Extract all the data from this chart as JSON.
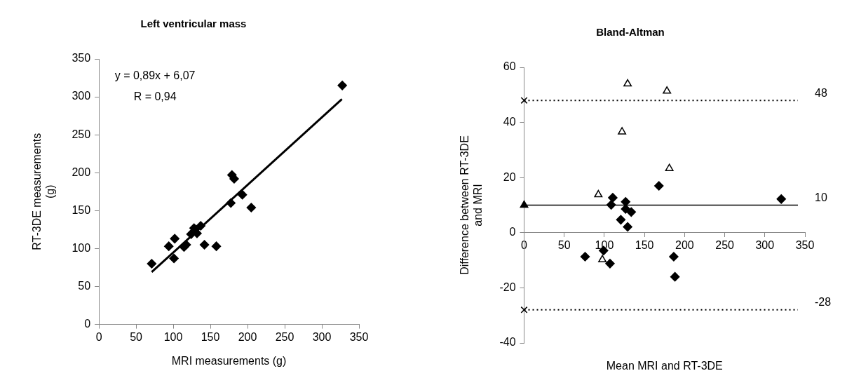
{
  "chart_data": [
    {
      "type": "scatter",
      "title": "Left ventricular mass",
      "xlabel": "MRI measurements (g)",
      "ylabel": "RT-3DE measurements (g)",
      "xlim": [
        0,
        350
      ],
      "xticks": [
        0,
        50,
        100,
        150,
        200,
        250,
        300,
        350
      ],
      "ylim": [
        0,
        350
      ],
      "yticks": [
        0,
        50,
        100,
        150,
        200,
        250,
        300,
        350
      ],
      "grid": false,
      "legend": false,
      "annotations": [
        "y = 0,89x + 6,07",
        "R = 0,94"
      ],
      "series": [
        {
          "color": "#000000",
          "marker": "diamond",
          "x": [
            71,
            94,
            102,
            101,
            114.5,
            117.5,
            124,
            128,
            132,
            137,
            142,
            158,
            177.5,
            179,
            182,
            193,
            205,
            327.5
          ],
          "values": [
            80,
            103,
            113,
            87,
            102,
            105,
            119,
            127,
            120,
            130,
            105,
            103,
            160,
            197,
            192,
            171,
            154,
            315
          ]
        },
        {
          "type": "line",
          "color": "#000000",
          "marker": "none",
          "x": [
            71,
            327
          ],
          "values": [
            69,
            297
          ]
        }
      ]
    },
    {
      "type": "scatter",
      "title": "Bland-Altman",
      "xlabel": "Mean MRI and RT-3DE",
      "ylabel": "Difference between RT-3DE and MRI",
      "xlim": [
        0,
        350
      ],
      "xticks": [
        0,
        50,
        100,
        150,
        200,
        250,
        300,
        350
      ],
      "ylim": [
        -40,
        60
      ],
      "yticks": [
        -40,
        -20,
        0,
        20,
        40,
        60
      ],
      "grid": false,
      "legend": false,
      "ref_lines": [
        {
          "axis": "y",
          "value": 48,
          "label": "48",
          "line_style": "dotted",
          "color": "#000000"
        },
        {
          "axis": "y",
          "value": 10,
          "label": "10",
          "line_style": "solid",
          "color": "#000000"
        },
        {
          "axis": "y",
          "value": -28,
          "label": "-28",
          "line_style": "dotted",
          "color": "#000000"
        }
      ],
      "series": [
        {
          "color": "#000000",
          "marker": "diamond",
          "x": [
            76,
            99,
            107,
            110.5,
            108.5,
            126.5,
            126.5,
            133.5,
            120.5,
            129,
            168,
            186.5,
            188,
            320.5
          ],
          "values": [
            -8.7,
            -6.5,
            -11.2,
            12.7,
            10.1,
            11.2,
            8.6,
            7.5,
            4.7,
            2.1,
            17,
            -8.7,
            -16,
            12.2
          ]
        },
        {
          "color": "#ffffff",
          "marker": "triangle",
          "x": [
            129,
            178,
            122,
            181,
            92.5,
            97.5
          ],
          "values": [
            54,
            51.4,
            36.6,
            23.3,
            13.8,
            -9.8
          ]
        },
        {
          "color": "#000000",
          "marker": "triangle",
          "x": [
            0
          ],
          "values": [
            10
          ]
        },
        {
          "color": "#000000",
          "marker": "cross",
          "x": [
            0,
            0
          ],
          "values": [
            48,
            -28
          ]
        }
      ]
    }
  ]
}
